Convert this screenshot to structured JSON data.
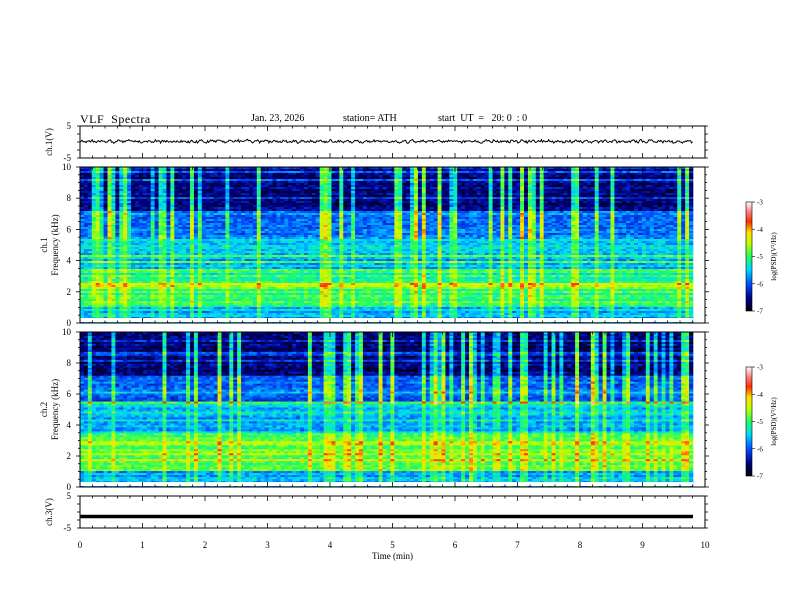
{
  "header": {
    "title": "VLF  Spectra",
    "date": "Jan. 23, 2026",
    "station": "station= ATH",
    "start_ut": "start  UT  =   20: 0  : 0"
  },
  "colors": {
    "bg": "#ffffff",
    "axis": "#000000",
    "spectrogram_background": "#000000"
  },
  "chart_data": [
    {
      "id": "ch1-voltage",
      "type": "line",
      "ylabel": "ch.1(V)",
      "ylim": [
        -5,
        5
      ],
      "yticks": [
        5,
        -5
      ],
      "xlim": [
        0,
        10
      ],
      "series": [
        {
          "values_description_level": 0.2,
          "noise_amplitude": 0.8
        }
      ]
    },
    {
      "id": "ch1-spectrogram",
      "type": "heatmap",
      "ylabel": "ch.1",
      "ylabel2": "Frequency (kHz)",
      "ylim": [
        0,
        10
      ],
      "yticks": [
        0,
        2,
        4,
        6,
        8,
        10
      ],
      "xlim": [
        0,
        10
      ],
      "colorbar": {
        "label": "log(PSD)(V²/Hz)",
        "range": [
          -7,
          -3
        ],
        "ticks": [
          -3,
          -4,
          -5,
          -6,
          -7
        ]
      }
    },
    {
      "id": "ch2-spectrogram",
      "type": "heatmap",
      "ylabel": "ch.2",
      "ylabel2": "Frequency (kHz)",
      "ylim": [
        0,
        10
      ],
      "yticks": [
        0,
        2,
        4,
        6,
        8,
        10
      ],
      "xlim": [
        0,
        10
      ],
      "colorbar": {
        "label": "log(PSD)(V²/Hz)",
        "range": [
          -7,
          -3
        ],
        "ticks": [
          -3,
          -4,
          -5,
          -6,
          -7
        ]
      }
    },
    {
      "id": "ch3-voltage",
      "type": "line",
      "ylabel": "ch.3(V)",
      "ylim": [
        -5,
        5
      ],
      "yticks": [
        5,
        -5
      ],
      "xlim": [
        0,
        10
      ],
      "xticks": [
        0,
        1,
        2,
        3,
        4,
        5,
        6,
        7,
        8,
        9,
        10
      ],
      "xlabel": "Time  (min)",
      "series": [
        {
          "level": -1.4
        }
      ]
    }
  ]
}
